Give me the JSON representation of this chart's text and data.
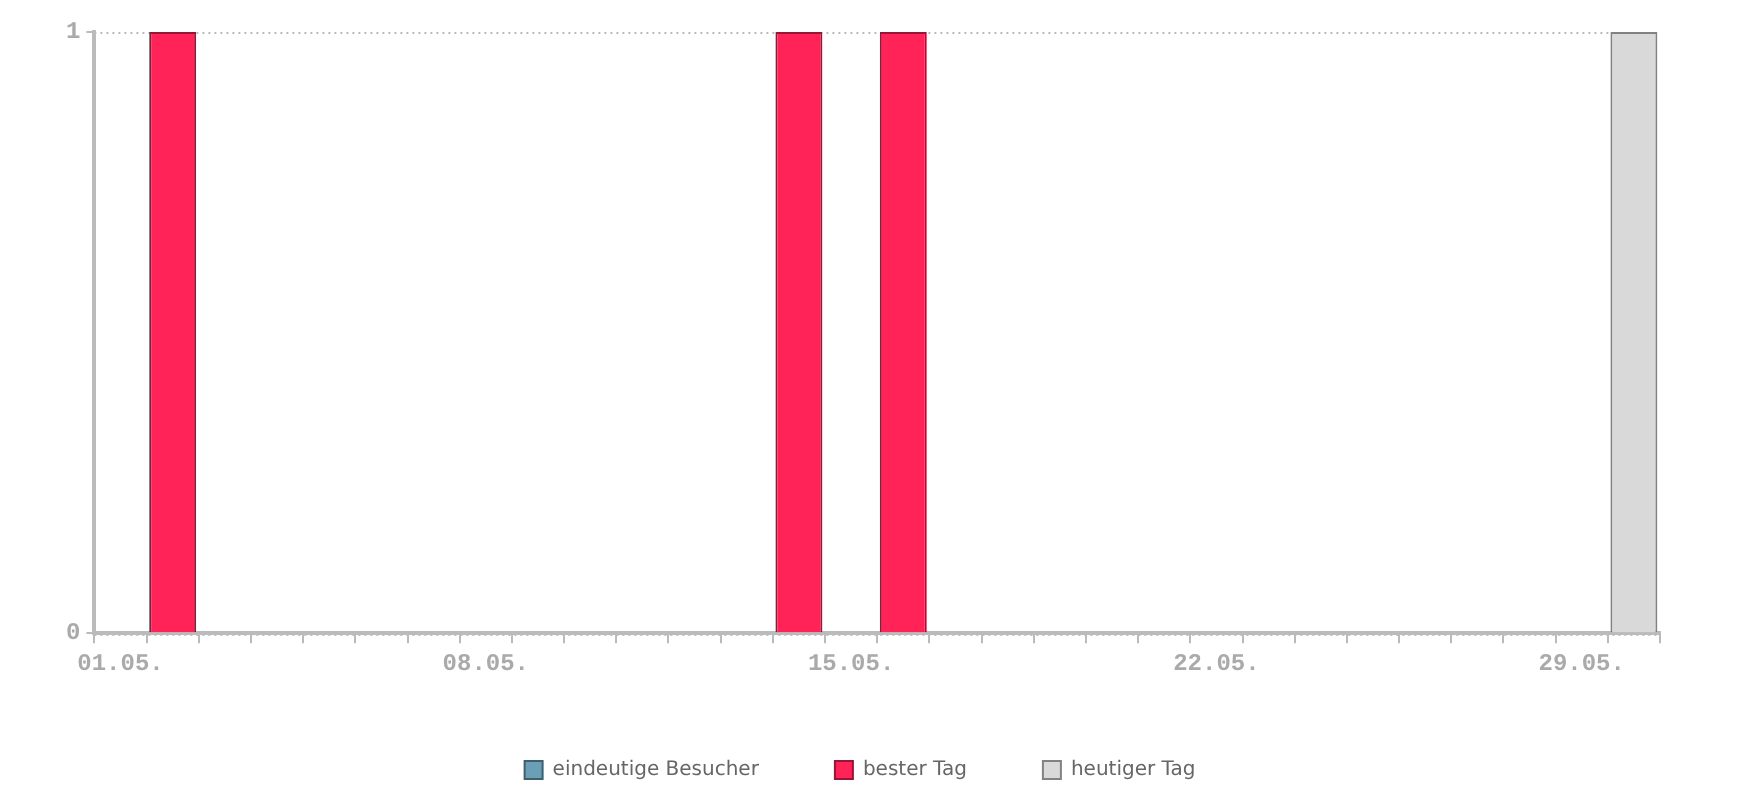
{
  "chart_data": {
    "type": "bar",
    "categories": [
      "01.05.",
      null,
      null,
      null,
      null,
      null,
      null,
      "08.05.",
      null,
      null,
      null,
      null,
      null,
      null,
      "15.05.",
      null,
      null,
      null,
      null,
      null,
      null,
      "22.05.",
      null,
      null,
      null,
      null,
      null,
      null,
      "29.05.",
      null
    ],
    "series": [
      {
        "name": "eindeutige Besucher",
        "color": "#6a9fb5",
        "values": [
          null,
          null,
          null,
          null,
          null,
          null,
          null,
          null,
          null,
          null,
          null,
          null,
          null,
          null,
          null,
          null,
          null,
          null,
          null,
          null,
          null,
          null,
          null,
          null,
          null,
          null,
          null,
          null,
          null,
          null
        ]
      },
      {
        "name": "bester Tag",
        "color": "#ff2358",
        "values": [
          null,
          1,
          null,
          null,
          null,
          null,
          null,
          null,
          null,
          null,
          null,
          null,
          null,
          1,
          null,
          1,
          null,
          null,
          null,
          null,
          null,
          null,
          null,
          null,
          null,
          null,
          null,
          null,
          null,
          null
        ]
      },
      {
        "name": "heutiger Tag",
        "color": "#d9d9d9",
        "values": [
          null,
          null,
          null,
          null,
          null,
          null,
          null,
          null,
          null,
          null,
          null,
          null,
          null,
          null,
          null,
          null,
          null,
          null,
          null,
          null,
          null,
          null,
          null,
          null,
          null,
          null,
          null,
          null,
          null,
          1
        ]
      }
    ],
    "stacked": true,
    "ylim": [
      0,
      1
    ],
    "yticks": [
      0,
      1
    ],
    "grid": "y",
    "legend": "bottom"
  }
}
